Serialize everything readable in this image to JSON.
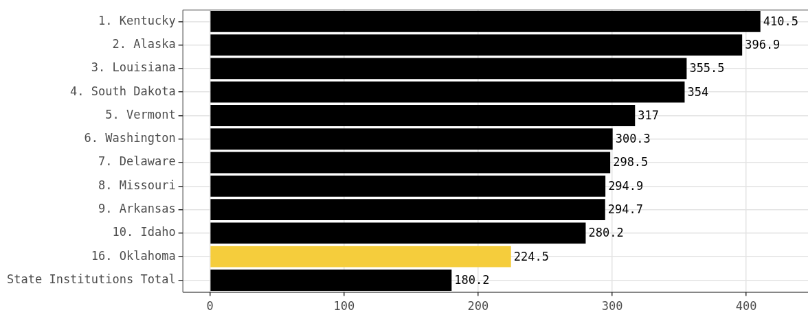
{
  "chart_data": {
    "type": "bar",
    "orientation": "horizontal",
    "categories": [
      "1. Kentucky",
      "2. Alaska",
      "3. Louisiana",
      "4. South Dakota",
      "5. Vermont",
      "6. Washington",
      "7. Delaware",
      "8. Missouri",
      "9. Arkansas",
      "10. Idaho",
      "16. Oklahoma",
      "State Institutions Total"
    ],
    "values": [
      410.5,
      396.9,
      355.5,
      354,
      317,
      300.3,
      298.5,
      294.9,
      294.7,
      280.2,
      224.5,
      180.2
    ],
    "colors": [
      "#000000",
      "#000000",
      "#000000",
      "#000000",
      "#000000",
      "#000000",
      "#000000",
      "#000000",
      "#000000",
      "#000000",
      "#f5cd3c",
      "#000000"
    ],
    "xlim": [
      -20.5,
      446
    ],
    "xticks": [
      0,
      100,
      200,
      300,
      400
    ],
    "grid": true,
    "data_labels": true,
    "legend": false
  }
}
